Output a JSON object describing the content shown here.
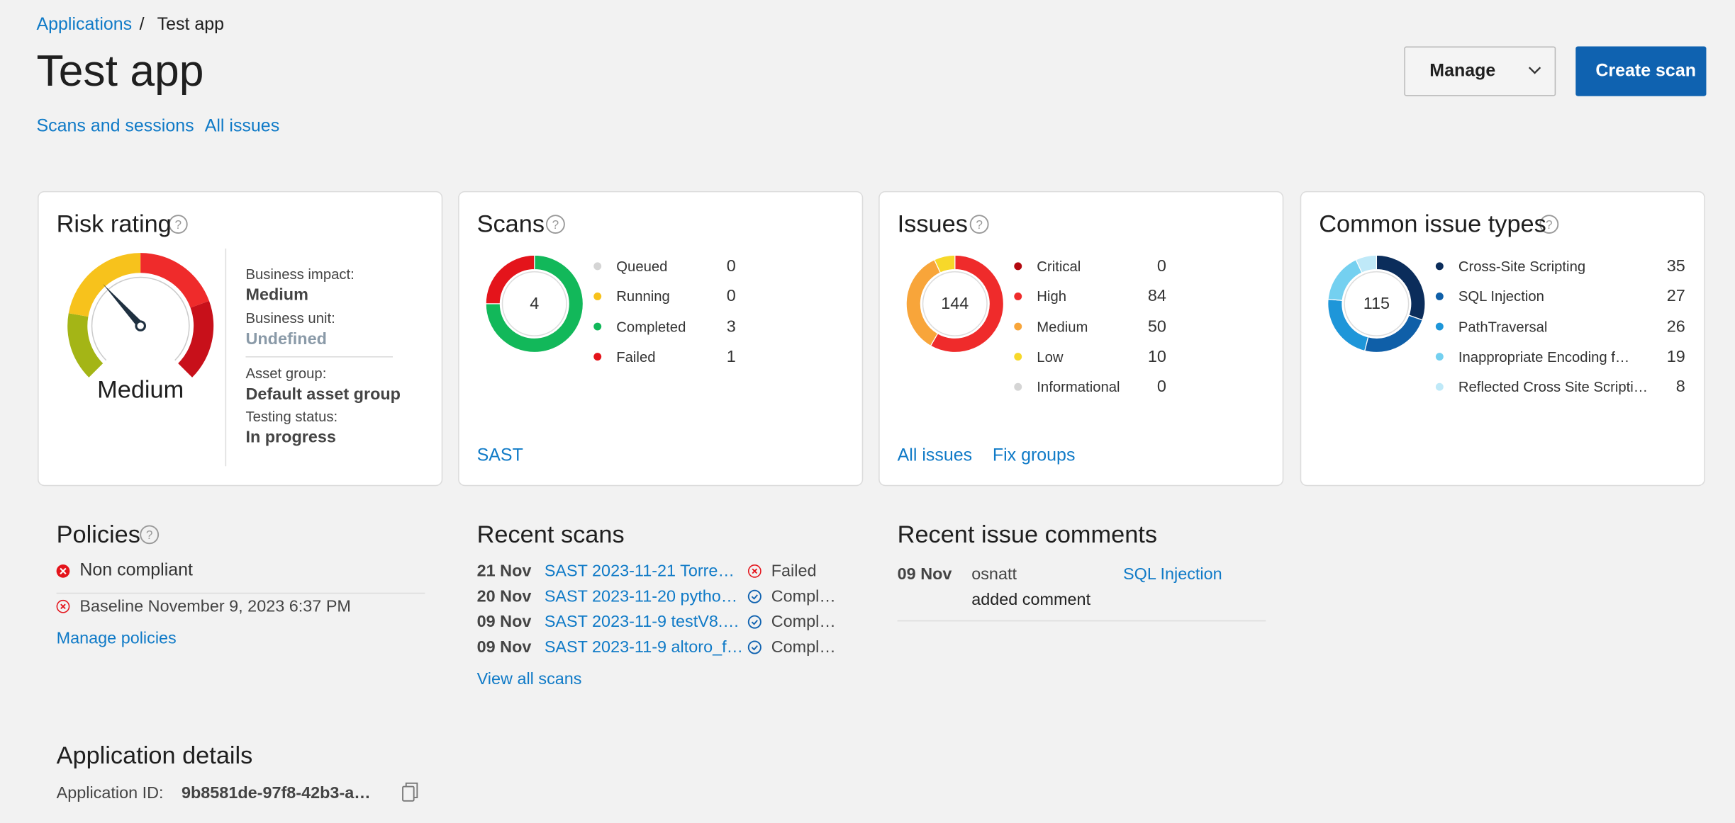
{
  "breadcrumb": [
    "Applications",
    "Test app"
  ],
  "title": "Test app",
  "buttons": {
    "manage": "Manage",
    "create": "Create scan"
  },
  "tabs": [
    "Scans and sessions",
    "All issues"
  ],
  "risk": {
    "title": "Risk rating",
    "level": "Medium",
    "fields": [
      {
        "label": "Business impact:",
        "value": "Medium"
      },
      {
        "label": "Business unit:",
        "value": "Undefined"
      },
      {
        "label": "Asset group:",
        "value": "Default asset group"
      },
      {
        "label": "Testing status:",
        "value": "In progress"
      }
    ]
  },
  "cards": [
    {
      "title": "Scans",
      "total": 4,
      "items": [
        {
          "name": "Queued",
          "value": 0,
          "color": "#d5d5d5"
        },
        {
          "name": "Running",
          "value": 0,
          "color": "#f7c21c"
        },
        {
          "name": "Completed",
          "value": 3,
          "color": "#12b85a"
        },
        {
          "name": "Failed",
          "value": 1,
          "color": "#e4141b"
        }
      ],
      "links": [
        "SAST"
      ]
    },
    {
      "title": "Issues",
      "total": 144,
      "items": [
        {
          "name": "Critical",
          "value": 0,
          "color": "#b3080f"
        },
        {
          "name": "High",
          "value": 84,
          "color": "#ef2b2b"
        },
        {
          "name": "Medium",
          "value": 50,
          "color": "#f8a53a"
        },
        {
          "name": "Low",
          "value": 10,
          "color": "#f7d82a"
        },
        {
          "name": "Informational",
          "value": 0,
          "color": "#d5d5d5"
        }
      ],
      "links": [
        "All issues",
        "Fix groups"
      ]
    },
    {
      "title": "Common issue types",
      "total": 115,
      "items": [
        {
          "name": "Cross-Site Scripting",
          "value": 35,
          "color": "#0b2d5b"
        },
        {
          "name": "SQL Injection",
          "value": 27,
          "color": "#0f5fa8"
        },
        {
          "name": "PathTraversal",
          "value": 26,
          "color": "#1e96d9"
        },
        {
          "name": "Inappropriate Encoding f…",
          "value": 19,
          "color": "#74d0f0"
        },
        {
          "name": "Reflected Cross Site Scripti…",
          "value": 8,
          "color": "#bfe9f8"
        }
      ],
      "links": []
    }
  ],
  "policies": {
    "title": "Policies",
    "status": "Non compliant",
    "baseline": "Baseline November 9, 2023 6:37 PM",
    "link": "Manage policies"
  },
  "recent_scans": {
    "title": "Recent scans",
    "rows": [
      {
        "date": "21 Nov",
        "name": "SAST 2023-11-21 Torre…",
        "status": "Failed"
      },
      {
        "date": "20 Nov",
        "name": "SAST 2023-11-20 pytho…",
        "status": "Compl…"
      },
      {
        "date": "09 Nov",
        "name": "SAST 2023-11-9 testV8.…",
        "status": "Compl…"
      },
      {
        "date": "09 Nov",
        "name": "SAST 2023-11-9 altoro_f…",
        "status": "Compl…"
      }
    ],
    "link": "View all scans"
  },
  "comments": {
    "title": "Recent issue comments",
    "rows": [
      {
        "date": "09 Nov",
        "user": "osnatt",
        "issue": "SQL Injection",
        "action": "added comment"
      }
    ]
  },
  "details": {
    "title": "Application details",
    "label": "Application ID:",
    "value": "9b8581de-97f8-42b3-a…"
  }
}
